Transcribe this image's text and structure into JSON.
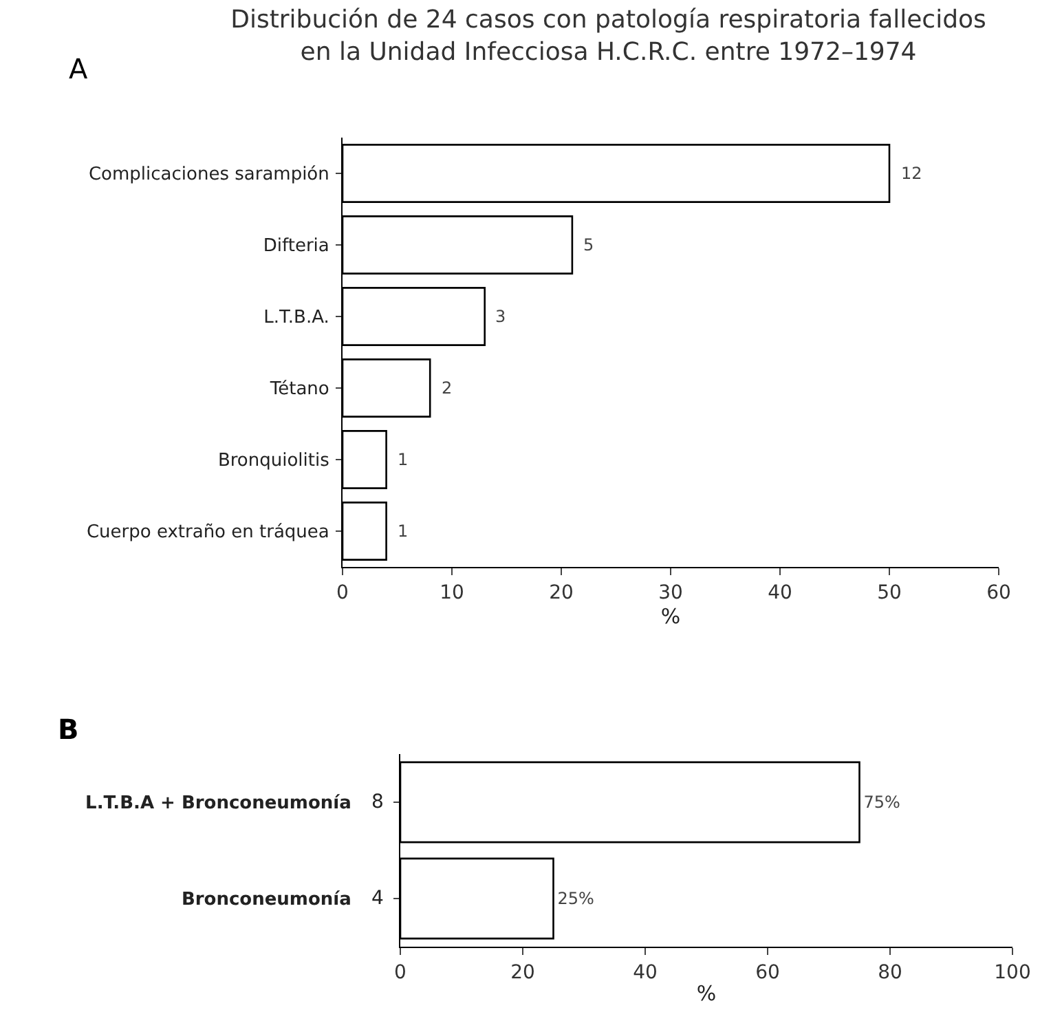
{
  "chart_data": [
    {
      "type": "bar",
      "orientation": "horizontal",
      "title": "Distribución de 24 casos con patología respiratoria fallecidos en la Unidad Infecciosa H.C.R.C. entre 1972–1974",
      "xlabel": "%",
      "categories": [
        "Complicaciones sarampión",
        "Difteria",
        "L.T.B.A.",
        "Tétano",
        "Bronquiolitis",
        "Cuerpo extraño en tráquea"
      ],
      "values": [
        50,
        21,
        13,
        8,
        4,
        4
      ],
      "color": "#ffffff",
      "xlim": [
        0,
        60
      ],
      "xticks": [
        0,
        10,
        20,
        30,
        40,
        50,
        60
      ],
      "grid": false,
      "legend": false,
      "annotations": [
        "A",
        {
          "text": "12",
          "x": 50,
          "y": "Complicaciones sarampión"
        },
        {
          "text": "5",
          "x": 21,
          "y": "Difteria"
        },
        {
          "text": "3",
          "x": 13,
          "y": "L.T.B.A."
        },
        {
          "text": "2",
          "x": 8,
          "y": "Tétano"
        },
        {
          "text": "1",
          "x": 4,
          "y": "Bronquiolitis"
        },
        {
          "text": "1",
          "x": 4,
          "y": "Cuerpo extraño en tráquea"
        }
      ]
    },
    {
      "type": "bar",
      "orientation": "horizontal",
      "title": "B",
      "xlabel": "%",
      "categories": [
        "L.T.B.A + Bronconeumonía",
        "Bronconeumonía"
      ],
      "values": [
        75,
        25
      ],
      "value_labels": [
        "75%",
        "25%"
      ],
      "color": "#ffffff",
      "xlim": [
        0,
        100
      ],
      "xticks": [
        0,
        20,
        40,
        60,
        80,
        100
      ],
      "grid": false,
      "legend": false,
      "annotations": [
        "8",
        "4"
      ]
    }
  ]
}
